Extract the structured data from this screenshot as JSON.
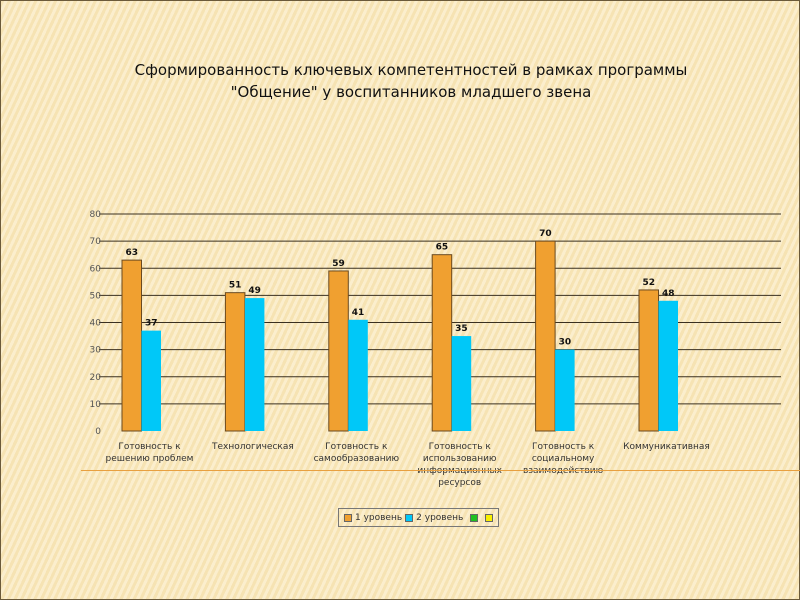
{
  "chart_data": {
    "type": "bar",
    "title": "Сформированность ключевых компетентностей в рамках программы \"Общение\" у воспитанников младшего звена",
    "title_lines": [
      "Сформированность ключевых компетентностей в рамках программы",
      "\"Общение\" у воспитанников младшего звена"
    ],
    "categories": [
      [
        "Готовность к",
        "решению проблем"
      ],
      [
        "Технологическая"
      ],
      [
        "Готовность к",
        "самообразованию"
      ],
      [
        "Готовность к",
        "использованию",
        "информационных",
        "ресурсов"
      ],
      [
        "Готовность к",
        "социальному",
        "взаимодействию"
      ],
      [
        "Коммуникативная"
      ]
    ],
    "series": [
      {
        "name": "1 уровень",
        "color": "#f0a030",
        "values": [
          63,
          51,
          59,
          65,
          70,
          52
        ]
      },
      {
        "name": "2 уровень",
        "color": "#00c8f8",
        "values": [
          37,
          49,
          41,
          35,
          30,
          48
        ]
      }
    ],
    "legend_extra": [
      {
        "color": "#20c020"
      },
      {
        "color": "#f8f000"
      }
    ],
    "ylim": [
      0,
      80
    ],
    "yticks": [
      0,
      10,
      20,
      30,
      40,
      50,
      60,
      70,
      80
    ],
    "grid": true,
    "legend_position": "bottom"
  }
}
